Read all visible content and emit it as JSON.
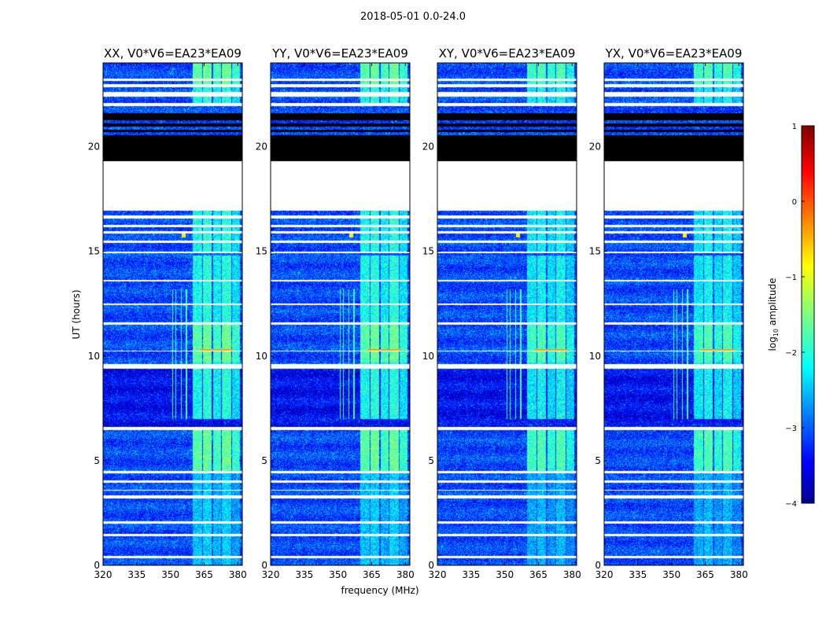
{
  "figure": {
    "suptitle": "2018-05-01 0.0-24.0",
    "xlabel": "frequency (MHz)",
    "ylabel": "UT (hours)"
  },
  "chart_data": {
    "type": "heatmap",
    "xlim": [
      320,
      382
    ],
    "ylim": [
      0,
      24
    ],
    "x_ticks": [
      "320",
      "335",
      "350",
      "365",
      "380"
    ],
    "x_tick_values": [
      320,
      335,
      350,
      365,
      380
    ],
    "y_ticks": [
      "0",
      "5",
      "10",
      "15",
      "20"
    ],
    "y_tick_values": [
      0,
      5,
      10,
      15,
      20
    ],
    "panels": [
      {
        "title": "XX, V0*V6=EA23*EA09",
        "show_ylabel": true
      },
      {
        "title": "YY, V0*V6=EA23*EA09",
        "show_ylabel": false
      },
      {
        "title": "XY, V0*V6=EA23*EA09",
        "show_ylabel": false
      },
      {
        "title": "YX, V0*V6=EA23*EA09",
        "show_ylabel": false
      }
    ],
    "colorbar": {
      "label": "log10 amplitude",
      "label_main": "log",
      "label_sub": "10",
      "label_rest": " amplitude",
      "range": [
        -4,
        1
      ],
      "ticks": [
        "1",
        "0",
        "−1",
        "−2",
        "−3",
        "−4"
      ],
      "tick_values": [
        1,
        0,
        -1,
        -2,
        -3,
        -4
      ],
      "colormap": "jet"
    },
    "flagged_black_hours": [
      [
        19.3,
        20.55
      ],
      [
        20.7,
        20.8
      ],
      [
        20.95,
        21.1
      ],
      [
        21.25,
        21.6
      ]
    ],
    "flagged_white_hours": [
      [
        17.7,
        19.3
      ],
      [
        0.35,
        0.45
      ],
      [
        1.4,
        1.5
      ],
      [
        2.0,
        2.1
      ],
      [
        3.2,
        3.35
      ],
      [
        3.55,
        3.6
      ],
      [
        3.95,
        4.05
      ],
      [
        4.4,
        4.5
      ],
      [
        6.45,
        6.6
      ],
      [
        9.4,
        9.6
      ],
      [
        10.2,
        10.25
      ],
      [
        11.5,
        11.6
      ],
      [
        12.45,
        12.5
      ],
      [
        13.55,
        13.65
      ],
      [
        14.9,
        15.0
      ],
      [
        15.4,
        15.5
      ],
      [
        15.85,
        15.95
      ],
      [
        16.15,
        16.25
      ],
      [
        16.55,
        16.7
      ],
      [
        16.95,
        17.7
      ],
      [
        21.95,
        22.1
      ],
      [
        22.4,
        22.6
      ],
      [
        22.85,
        23.0
      ],
      [
        23.15,
        23.25
      ]
    ],
    "rfi_band_mhz": [
      [
        360,
        364
      ],
      [
        364.5,
        368.5
      ],
      [
        369,
        372.5
      ],
      [
        373,
        377
      ],
      [
        377.5,
        381
      ]
    ],
    "rfi_band_strength": [
      -1.6,
      -1.5,
      -1.7,
      -1.5,
      -1.8
    ],
    "rfi_active_hours": [
      [
        0,
        6.5
      ],
      [
        7.0,
        14.8
      ],
      [
        15.0,
        17.0
      ],
      [
        22.0,
        24
      ]
    ],
    "rfi_bright_hours": [
      [
        4.5,
        6.5
      ],
      [
        9.7,
        11.5
      ],
      [
        23.0,
        24
      ]
    ],
    "narrow_lines_mhz": [
      351,
      352.5,
      354.8,
      357.2
    ],
    "narrow_lines_hours": [
      7.0,
      13.2
    ],
    "hot_spot": {
      "x": 356,
      "y": 15.8,
      "value": -0.8
    },
    "hot_line_hour": 10.3
  }
}
